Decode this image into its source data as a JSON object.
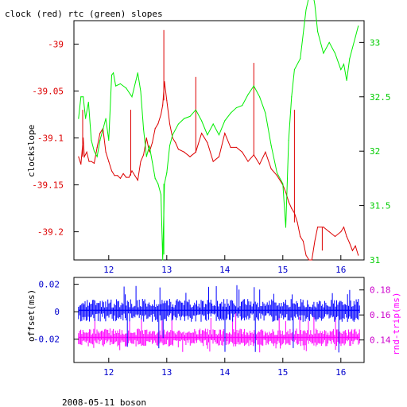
{
  "colors": {
    "axes": "#000000",
    "clock": "#dd0000",
    "rtc": "#00ee00",
    "offset": "#0000ff",
    "roundtrip": "#ff00ff",
    "left_ticks_top": "#dd0000",
    "right_ticks_top": "#00cc00",
    "bottom_ticks": "#0000cc",
    "left_ticks_bottom": "#0000cc",
    "right_ticks_bottom": "#cc00cc"
  },
  "footer": "2008-05-11 boson",
  "chart_data": [
    {
      "type": "line",
      "title": "clock (red) rtc (green) slopes",
      "ylabel_left": "clockslope",
      "xlim": [
        11.4,
        16.4
      ],
      "x_ticks": [
        12,
        13,
        14,
        15,
        16
      ],
      "x_tick_labels": [
        "12",
        "13",
        "14",
        "15",
        "16"
      ],
      "ylim_left": [
        -39.23,
        -38.975
      ],
      "yticks_left": [
        -39,
        -39.05,
        -39.1,
        -39.15,
        -39.2
      ],
      "ytick_labels_left": [
        "-39",
        "-39.05",
        "-39.1",
        "-39.15",
        "-39.2"
      ],
      "ylim_right": [
        31.0,
        33.2
      ],
      "yticks_right": [
        31,
        31.5,
        32,
        32.5,
        33
      ],
      "ytick_labels_right": [
        "31",
        "31.5",
        "32",
        "32.5",
        "33"
      ],
      "series": [
        {
          "axis": "left",
          "color": "#dd0000",
          "x": [
            11.48,
            11.52,
            11.56,
            11.58,
            11.62,
            11.66,
            11.7,
            11.75,
            11.8,
            11.85,
            11.9,
            11.95,
            12.0,
            12.05,
            12.1,
            12.15,
            12.2,
            12.25,
            12.3,
            12.35,
            12.4,
            12.45,
            12.5,
            12.55,
            12.6,
            12.65,
            12.7,
            12.75,
            12.8,
            12.85,
            12.9,
            12.93,
            12.96,
            13.0,
            13.05,
            13.1,
            13.15,
            13.2,
            13.3,
            13.4,
            13.5,
            13.6,
            13.7,
            13.8,
            13.9,
            14.0,
            14.1,
            14.2,
            14.3,
            14.4,
            14.5,
            14.6,
            14.7,
            14.8,
            14.9,
            15.0,
            15.05,
            15.1,
            15.15,
            15.2,
            15.25,
            15.3,
            15.35,
            15.4,
            15.45,
            15.5,
            15.55,
            15.6,
            15.7,
            15.8,
            15.9,
            16.0,
            16.05,
            16.1,
            16.15,
            16.2,
            16.25,
            16.3
          ],
          "values": [
            -39.12,
            -39.128,
            -39.1,
            -39.12,
            -39.115,
            -39.125,
            -39.125,
            -39.127,
            -39.11,
            -39.095,
            -39.09,
            -39.115,
            -39.125,
            -39.135,
            -39.14,
            -39.14,
            -39.143,
            -39.138,
            -39.142,
            -39.142,
            -39.135,
            -39.14,
            -39.145,
            -39.125,
            -39.118,
            -39.1,
            -39.115,
            -39.105,
            -39.09,
            -39.085,
            -39.075,
            -39.065,
            -39.04,
            -39.06,
            -39.085,
            -39.1,
            -39.105,
            -39.112,
            -39.115,
            -39.12,
            -39.115,
            -39.095,
            -39.105,
            -39.125,
            -39.12,
            -39.095,
            -39.11,
            -39.11,
            -39.115,
            -39.125,
            -39.118,
            -39.128,
            -39.115,
            -39.133,
            -39.14,
            -39.15,
            -39.158,
            -39.168,
            -39.175,
            -39.18,
            -39.19,
            -39.205,
            -39.21,
            -39.225,
            -39.23,
            -39.23,
            -39.21,
            -39.195,
            -39.195,
            -39.2,
            -39.205,
            -39.2,
            -39.195,
            -39.205,
            -39.212,
            -39.22,
            -39.215,
            -39.225
          ]
        },
        {
          "axis": "right",
          "color": "#00ee00",
          "x": [
            11.48,
            11.52,
            11.56,
            11.6,
            11.65,
            11.7,
            11.75,
            11.8,
            11.85,
            11.9,
            11.95,
            12.0,
            12.05,
            12.08,
            12.12,
            12.2,
            12.3,
            12.4,
            12.5,
            12.55,
            12.6,
            12.65,
            12.7,
            12.75,
            12.8,
            12.85,
            12.9,
            12.93,
            12.96,
            13.0,
            13.05,
            13.1,
            13.2,
            13.3,
            13.4,
            13.5,
            13.6,
            13.7,
            13.8,
            13.9,
            14.0,
            14.1,
            14.2,
            14.3,
            14.4,
            14.5,
            14.6,
            14.7,
            14.8,
            14.9,
            15.0,
            15.05,
            15.1,
            15.15,
            15.2,
            15.3,
            15.4,
            15.45,
            15.5,
            15.55,
            15.6,
            15.7,
            15.8,
            15.9,
            16.0,
            16.05,
            16.1,
            16.15,
            16.2,
            16.25,
            16.3
          ],
          "values": [
            32.3,
            32.5,
            32.5,
            32.3,
            32.45,
            32.1,
            32.0,
            31.95,
            32.1,
            32.2,
            32.3,
            32.1,
            32.7,
            32.72,
            32.6,
            32.62,
            32.58,
            32.5,
            32.72,
            32.55,
            32.2,
            31.95,
            32.05,
            31.9,
            31.75,
            31.7,
            31.6,
            31.0,
            31.7,
            31.8,
            32.05,
            32.15,
            32.25,
            32.3,
            32.32,
            32.38,
            32.28,
            32.15,
            32.25,
            32.15,
            32.28,
            32.35,
            32.4,
            32.42,
            32.52,
            32.6,
            32.5,
            32.35,
            32.05,
            31.8,
            31.7,
            31.3,
            32.1,
            32.5,
            32.75,
            32.85,
            33.3,
            33.42,
            33.5,
            33.35,
            33.1,
            32.9,
            33.0,
            32.9,
            32.75,
            32.8,
            32.65,
            32.85,
            32.95,
            33.05,
            33.15
          ]
        }
      ],
      "spikes": [
        {
          "axis": "left",
          "x": 11.55,
          "from": -39.12,
          "to": -39.07
        },
        {
          "axis": "left",
          "x": 12.38,
          "from": -39.14,
          "to": -39.07
        },
        {
          "axis": "left",
          "x": 12.95,
          "from": -39.06,
          "to": -38.985
        },
        {
          "axis": "left",
          "x": 13.5,
          "from": -39.115,
          "to": -39.035
        },
        {
          "axis": "left",
          "x": 14.5,
          "from": -39.118,
          "to": -39.02
        },
        {
          "axis": "left",
          "x": 15.2,
          "from": -39.19,
          "to": -39.07
        },
        {
          "axis": "left",
          "x": 15.68,
          "from": -39.195,
          "to": -39.22
        },
        {
          "axis": "right",
          "x": 12.95,
          "from": 31.7,
          "to": 31.05
        }
      ]
    },
    {
      "type": "line",
      "ylabel_left": "offset(ms)",
      "ylabel_right": "rnd-trip(ms)",
      "xlim": [
        11.4,
        16.4
      ],
      "x_ticks": [
        12,
        13,
        14,
        15,
        16
      ],
      "x_tick_labels": [
        "12",
        "13",
        "14",
        "15",
        "16"
      ],
      "ylim_left": [
        -0.037,
        0.025
      ],
      "yticks_left": [
        0.02,
        0,
        -0.02
      ],
      "ytick_labels_left": [
        "0.02",
        "0",
        "-0.02"
      ],
      "ylim_right": [
        0.122,
        0.19
      ],
      "yticks_right": [
        0.18,
        0.16,
        0.14
      ],
      "ytick_labels_right": [
        "0.18",
        "0.16",
        "0.14"
      ],
      "series": [
        {
          "axis": "left",
          "color": "#0000ff",
          "band": {
            "x_from": 11.48,
            "x_to": 16.32,
            "center": 0.001,
            "spread": 0.007,
            "peak_max": 0.02,
            "peak_min": -0.03
          }
        },
        {
          "axis": "right",
          "color": "#ff00ff",
          "band": {
            "x_from": 11.48,
            "x_to": 16.32,
            "center": 0.142,
            "spread": 0.006,
            "peak_max": 0.163,
            "peak_min": 0.13
          }
        }
      ]
    }
  ]
}
